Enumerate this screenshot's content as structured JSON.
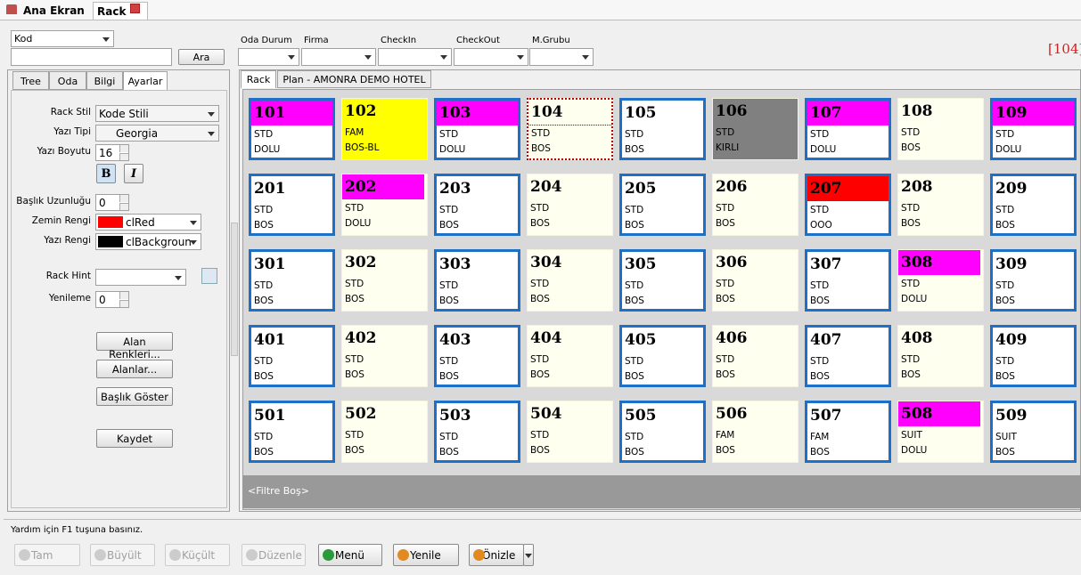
{
  "tabs": [
    "Ana Ekran",
    "Rack"
  ],
  "search": {
    "field": "Kod",
    "button": "Ara"
  },
  "filters": [
    "Oda Durum",
    "Firma",
    "CheckIn",
    "CheckOut",
    "M.Grubu"
  ],
  "count": "[104]",
  "left_tabs": [
    "Tree",
    "Oda",
    "Bilgi",
    "Ayarlar"
  ],
  "settings": [
    {
      "label": "Rack Stil",
      "value": "Kode Stili"
    },
    {
      "label": "Yazı Tipi",
      "value": "Georgia"
    },
    {
      "label": "Yazı Boyutu",
      "value": "16"
    },
    {
      "label": "Başlık Uzunluğu",
      "value": "0"
    },
    {
      "label": "Zemin Rengi",
      "value": "clRed",
      "color": "#ff0000"
    },
    {
      "label": "Yazı Rengi",
      "value": "clBackgroun",
      "color": "#000000"
    },
    {
      "label": "Rack Hint"
    },
    {
      "label": "Yenileme",
      "value": "0"
    }
  ],
  "style_buttons": [
    "B",
    "I"
  ],
  "setting_buttons": [
    "Alan Renkleri...",
    "Alanlar...",
    "Başlık Göster",
    "Kaydet"
  ],
  "right_tabs": [
    "Rack",
    "Plan - AMONRA DEMO HOTEL"
  ],
  "rooms": [
    {
      "number": "101",
      "type": "STD",
      "status": "DOLU",
      "color": "#ff00ff"
    },
    {
      "number": "102",
      "type": "FAM",
      "status": "BOS-BL",
      "body_color": "#ffff00"
    },
    {
      "number": "103",
      "type": "STD",
      "status": "DOLU",
      "color": "#ff00ff"
    },
    {
      "number": "104",
      "type": "STD",
      "status": "BOS",
      "selected": true
    },
    {
      "number": "105",
      "type": "STD",
      "status": "BOS"
    },
    {
      "number": "106",
      "type": "STD",
      "status": "KIRLI",
      "color": "#808080",
      "body_color": "#808080"
    },
    {
      "number": "107",
      "type": "STD",
      "status": "DOLU",
      "color": "#ff00ff"
    },
    {
      "number": "108",
      "type": "STD",
      "status": "BOS"
    },
    {
      "number": "109",
      "type": "STD",
      "status": "DOLU",
      "color": "#ff00ff"
    },
    {
      "number": "201",
      "type": "STD",
      "status": "BOS"
    },
    {
      "number": "202",
      "type": "STD",
      "status": "DOLU",
      "color": "#ff00ff"
    },
    {
      "number": "203",
      "type": "STD",
      "status": "BOS"
    },
    {
      "number": "204",
      "type": "STD",
      "status": "BOS"
    },
    {
      "number": "205",
      "type": "STD",
      "status": "BOS"
    },
    {
      "number": "206",
      "type": "STD",
      "status": "BOS"
    },
    {
      "number": "207",
      "type": "STD",
      "status": "OOO",
      "color": "#ff0000"
    },
    {
      "number": "208",
      "type": "STD",
      "status": "BOS"
    },
    {
      "number": "209",
      "type": "STD",
      "status": "BOS"
    },
    {
      "number": "301",
      "type": "STD",
      "status": "BOS"
    },
    {
      "number": "302",
      "type": "STD",
      "status": "BOS"
    },
    {
      "number": "303",
      "type": "STD",
      "status": "BOS"
    },
    {
      "number": "304",
      "type": "STD",
      "status": "BOS"
    },
    {
      "number": "305",
      "type": "STD",
      "status": "BOS"
    },
    {
      "number": "306",
      "type": "STD",
      "status": "BOS"
    },
    {
      "number": "307",
      "type": "STD",
      "status": "BOS"
    },
    {
      "number": "308",
      "type": "STD",
      "status": "DOLU",
      "color": "#ff00ff"
    },
    {
      "number": "309",
      "type": "STD",
      "status": "BOS"
    },
    {
      "number": "401",
      "type": "STD",
      "status": "BOS"
    },
    {
      "number": "402",
      "type": "STD",
      "status": "BOS"
    },
    {
      "number": "403",
      "type": "STD",
      "status": "BOS"
    },
    {
      "number": "404",
      "type": "STD",
      "status": "BOS"
    },
    {
      "number": "405",
      "type": "STD",
      "status": "BOS"
    },
    {
      "number": "406",
      "type": "STD",
      "status": "BOS"
    },
    {
      "number": "407",
      "type": "STD",
      "status": "BOS"
    },
    {
      "number": "408",
      "type": "STD",
      "status": "BOS"
    },
    {
      "number": "409",
      "type": "STD",
      "status": "BOS"
    },
    {
      "number": "501",
      "type": "STD",
      "status": "BOS"
    },
    {
      "number": "502",
      "type": "STD",
      "status": "BOS"
    },
    {
      "number": "503",
      "type": "STD",
      "status": "BOS"
    },
    {
      "number": "504",
      "type": "STD",
      "status": "BOS"
    },
    {
      "number": "505",
      "type": "STD",
      "status": "BOS"
    },
    {
      "number": "506",
      "type": "FAM",
      "status": "BOS"
    },
    {
      "number": "507",
      "type": "FAM",
      "status": "BOS"
    },
    {
      "number": "508",
      "type": "SUIT",
      "status": "DOLU",
      "color": "#ff00ff"
    },
    {
      "number": "509",
      "type": "SUIT",
      "status": "BOS"
    }
  ],
  "filter_bar": "<Filtre Boş>",
  "status_bar": "Yardım için F1 tuşuna basınız.",
  "toolbar": [
    {
      "label": "Tam",
      "enabled": false
    },
    {
      "label": "Büyült",
      "enabled": false
    },
    {
      "label": "Küçült",
      "enabled": false
    },
    {
      "label": "Düzenle",
      "enabled": false
    },
    {
      "label": "Menü",
      "enabled": true
    },
    {
      "label": "Yenile",
      "enabled": true
    },
    {
      "label": "Önizle",
      "enabled": true
    }
  ]
}
